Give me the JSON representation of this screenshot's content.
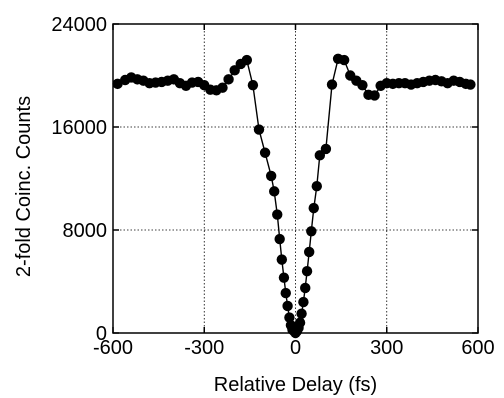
{
  "chart_data": {
    "type": "scatter",
    "title": "",
    "xlabel": "Relative Delay (fs)",
    "ylabel": "2-fold Coinc. Counts",
    "xlim": [
      -600,
      600
    ],
    "ylim": [
      0,
      24000
    ],
    "xticks": [
      -600,
      -300,
      0,
      300,
      600
    ],
    "xtick_labels": [
      "-600",
      "-300",
      "0",
      "300",
      "600"
    ],
    "yticks": [
      0,
      8000,
      16000,
      24000
    ],
    "ytick_labels": [
      "0",
      "8000",
      "16000",
      "24000"
    ],
    "grid": true,
    "legend": "none",
    "marker_color": "#000000",
    "line_color": "#000000",
    "series": [
      {
        "x": [
          -585,
          -560,
          -540,
          -520,
          -500,
          -480,
          -460,
          -440,
          -420,
          -400,
          -380,
          -360,
          -340,
          -320,
          -300,
          -280,
          -260,
          -240,
          -220,
          -200,
          -180,
          -160,
          -140,
          -120,
          -100,
          -80,
          -70,
          -60,
          -52,
          -45,
          -38,
          -32,
          -26,
          -20,
          -15,
          -10,
          -5,
          0,
          5,
          10,
          15,
          20,
          26,
          32,
          38,
          45,
          52,
          60,
          70,
          80,
          100,
          120,
          140,
          160,
          180,
          200,
          220,
          240,
          260,
          280,
          300,
          320,
          340,
          360,
          380,
          400,
          420,
          440,
          460,
          480,
          500,
          520,
          540,
          560,
          575
        ],
        "y": [
          19350,
          19650,
          19850,
          19700,
          19600,
          19400,
          19450,
          19500,
          19600,
          19700,
          19400,
          19200,
          19450,
          19500,
          19250,
          18900,
          18850,
          19050,
          19700,
          20400,
          20900,
          21200,
          19250,
          15800,
          14000,
          12200,
          11000,
          9200,
          7300,
          5700,
          4300,
          3100,
          2100,
          1200,
          600,
          250,
          150,
          0,
          150,
          400,
          800,
          1500,
          2400,
          3500,
          4800,
          6300,
          7900,
          9700,
          11400,
          13800,
          14300,
          19300,
          21300,
          21200,
          20000,
          19600,
          19250,
          18500,
          18450,
          19200,
          19400,
          19350,
          19400,
          19400,
          19300,
          19400,
          19500,
          19600,
          19650,
          19550,
          19400,
          19600,
          19500,
          19350,
          19300
        ]
      }
    ]
  }
}
